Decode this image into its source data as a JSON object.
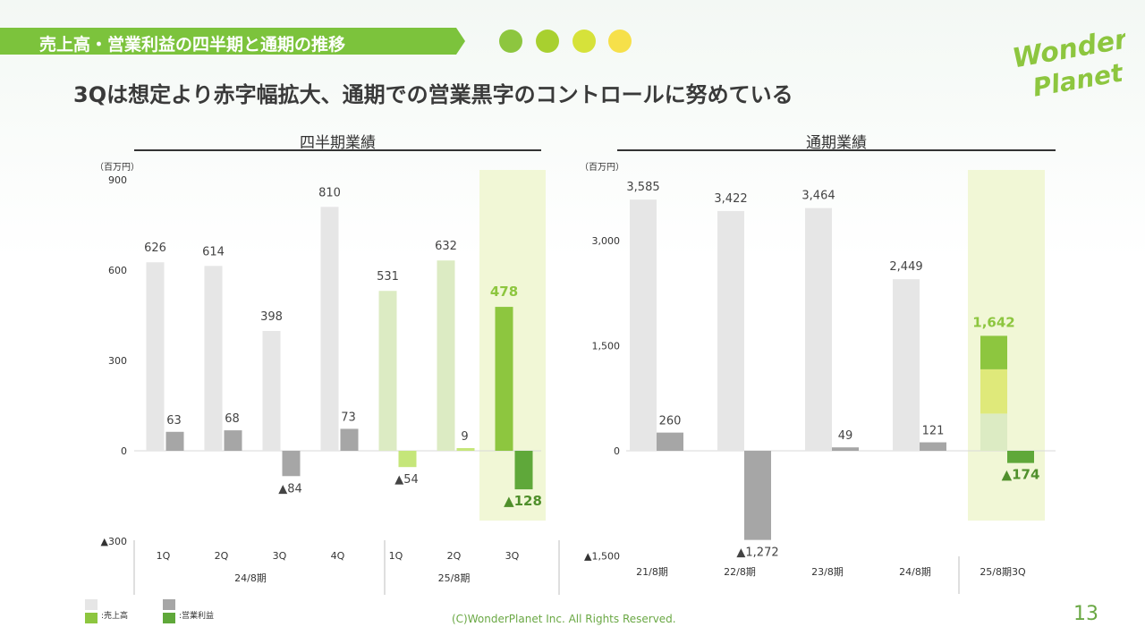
{
  "header": {
    "title": "売上高・営業利益の四半期と通期の推移",
    "subtitle": "3Qは想定より赤字幅拡大、通期での営業黒字のコントロールに努めている",
    "dots": [
      "#8dc63f",
      "#a8d02f",
      "#d6e23a",
      "#f6e04a"
    ]
  },
  "logo": {
    "line1": "Wonder",
    "line2": "Planet"
  },
  "footer": {
    "copyright": "(C)WonderPlanet Inc.  All Rights Reserved.",
    "page": "13"
  },
  "legend": {
    "sales": ":売上高",
    "op": ":営業利益"
  },
  "colors": {
    "sales_past": "#e6e6e6",
    "op_past": "#a6a6a6",
    "sales_cur": "#dcebc3",
    "sales_cur_bright": "#8dc63f",
    "op_cur": "#c5e67a",
    "op_cur_dark": "#5fa83a",
    "highlight": "#f1f7d6",
    "accent_text": "#8dc63f",
    "accent_text_dark": "#4f8f2b"
  },
  "chart_data": [
    {
      "type": "bar",
      "title": "四半期業績",
      "unit": "（百万円）",
      "ylim": [
        -300,
        900
      ],
      "yticks": [
        {
          "value": 900,
          "label": "900"
        },
        {
          "value": 600,
          "label": "600"
        },
        {
          "value": 300,
          "label": "300"
        },
        {
          "value": 0,
          "label": "0"
        },
        {
          "value": -300,
          "label": "▲300"
        }
      ],
      "categories": [
        "1Q",
        "2Q",
        "3Q",
        "4Q",
        "1Q",
        "2Q",
        "3Q"
      ],
      "groups": [
        {
          "label": "24/8期",
          "count": 4
        },
        {
          "label": "25/8期",
          "count": 3
        }
      ],
      "series": [
        {
          "name": "売上高",
          "values": [
            626,
            614,
            398,
            810,
            531,
            632,
            478
          ],
          "labels": [
            "626",
            "614",
            "398",
            "810",
            "531",
            "632",
            "478"
          ]
        },
        {
          "name": "営業利益",
          "values": [
            63,
            68,
            -84,
            73,
            -54,
            9,
            -128
          ],
          "labels": [
            "63",
            "68",
            "▲84",
            "73",
            "▲54",
            "9",
            "▲128"
          ]
        }
      ],
      "highlight_index": 6
    },
    {
      "type": "bar",
      "title": "通期業績",
      "unit": "（百万円）",
      "ylim": [
        -1500,
        3600
      ],
      "yticks": [
        {
          "value": 3000,
          "label": "3,000"
        },
        {
          "value": 1500,
          "label": "1,500"
        },
        {
          "value": 0,
          "label": "0"
        },
        {
          "value": -1500,
          "label": "▲1,500"
        }
      ],
      "categories": [
        "21/8期",
        "22/8期",
        "23/8期",
        "24/8期",
        "25/8期3Q"
      ],
      "series": [
        {
          "name": "売上高",
          "values": [
            3585,
            3422,
            3464,
            2449,
            1642
          ],
          "labels": [
            "3,585",
            "3,422",
            "3,464",
            "2,449",
            "1,642"
          ]
        },
        {
          "name": "営業利益",
          "values": [
            260,
            -1272,
            49,
            121,
            -174
          ],
          "labels": [
            "260",
            "▲1,272",
            "49",
            "121",
            "▲174"
          ]
        }
      ],
      "stack_last": [
        531,
        632,
        478
      ],
      "highlight_index": 4
    }
  ]
}
